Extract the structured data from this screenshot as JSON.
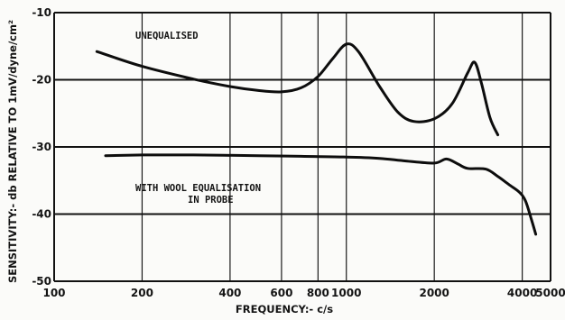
{
  "chart_data": {
    "type": "line",
    "x_scale": "log",
    "xlim": [
      100,
      5000
    ],
    "ylim": [
      -50,
      -10
    ],
    "grid": true,
    "xlabel": "FREQUENCY:- c/s",
    "ylabel": "SENSITIVITY:- db RELATIVE TO 1mV/dyne/cm²",
    "x_ticks": [
      {
        "value": 100,
        "label": "100"
      },
      {
        "value": 200,
        "label": "200"
      },
      {
        "value": 400,
        "label": "400"
      },
      {
        "value": 600,
        "label": "600"
      },
      {
        "value": 800,
        "label": "800"
      },
      {
        "value": 1000,
        "label": "1000"
      },
      {
        "value": 2000,
        "label": "2000"
      },
      {
        "value": 4000,
        "label": "4000"
      },
      {
        "value": 5000,
        "label": "5000"
      }
    ],
    "y_ticks": [
      {
        "value": -10,
        "label": "-10"
      },
      {
        "value": -20,
        "label": "-20"
      },
      {
        "value": -30,
        "label": "-30"
      },
      {
        "value": -40,
        "label": "-40"
      },
      {
        "value": -50,
        "label": "-50"
      }
    ],
    "annotations": [
      {
        "lines": [
          "UNEQUALISED"
        ],
        "series": 0
      },
      {
        "lines": [
          "WITH WOOL EQUALISATION",
          "IN PROBE"
        ],
        "series": 1
      }
    ],
    "series": [
      {
        "x": [
          140,
          200,
          300,
          400,
          500,
          600,
          700,
          800,
          900,
          1000,
          1100,
          1300,
          1500,
          1700,
          2000,
          2300,
          2600,
          2750,
          2900,
          3100,
          3300
        ],
        "y": [
          -15.8,
          -18.0,
          -19.9,
          -21.0,
          -21.6,
          -21.8,
          -21.2,
          -19.5,
          -16.8,
          -14.7,
          -15.8,
          -21.0,
          -24.8,
          -26.2,
          -25.8,
          -23.6,
          -19.0,
          -17.4,
          -20.5,
          -25.6,
          -28.2
        ]
      },
      {
        "x": [
          150,
          200,
          300,
          500,
          700,
          1000,
          1300,
          1600,
          2000,
          2200,
          2400,
          2600,
          3000,
          3300,
          3600,
          3900,
          4100,
          4300,
          4450
        ],
        "y": [
          -31.3,
          -31.2,
          -31.2,
          -31.3,
          -31.4,
          -31.5,
          -31.7,
          -32.1,
          -32.4,
          -31.8,
          -32.5,
          -33.2,
          -33.3,
          -34.4,
          -35.6,
          -36.7,
          -38.0,
          -40.8,
          -43.0
        ]
      }
    ]
  }
}
